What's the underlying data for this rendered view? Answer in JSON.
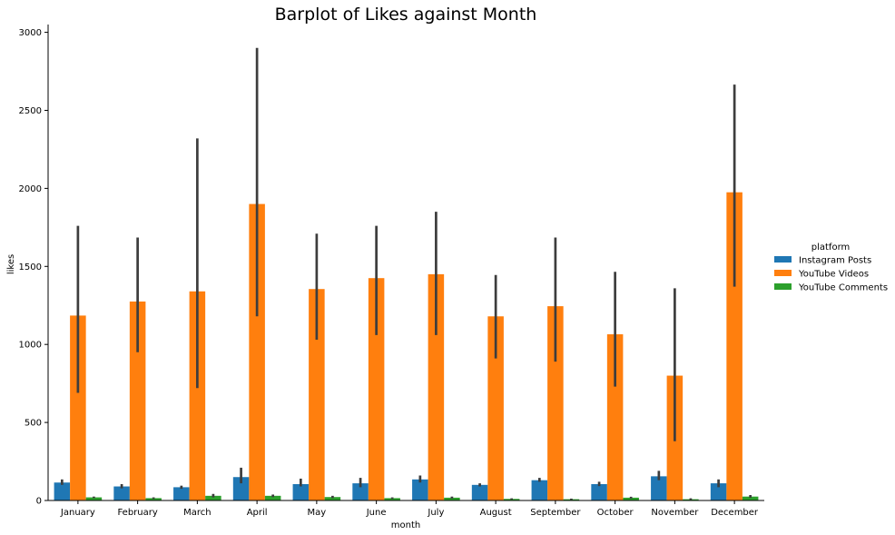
{
  "chart_data": {
    "type": "bar",
    "title": "Barplot of Likes against Month",
    "xlabel": "month",
    "ylabel": "likes",
    "ylim": [
      0,
      3050
    ],
    "yticks": [
      0,
      500,
      1000,
      1500,
      2000,
      2500,
      3000
    ],
    "grid": false,
    "legend_position": "right",
    "legend_title": "platform",
    "categories": [
      "January",
      "February",
      "March",
      "April",
      "May",
      "June",
      "July",
      "August",
      "September",
      "October",
      "November",
      "December"
    ],
    "series": [
      {
        "name": "Instagram Posts",
        "color": "#1f77b4",
        "values": [
          115,
          90,
          85,
          150,
          105,
          110,
          135,
          100,
          130,
          105,
          155,
          110
        ],
        "ci_low": [
          100,
          78,
          75,
          110,
          90,
          85,
          115,
          90,
          120,
          92,
          130,
          85
        ],
        "ci_high": [
          135,
          105,
          95,
          210,
          140,
          145,
          160,
          110,
          145,
          120,
          190,
          135
        ]
      },
      {
        "name": "YouTube Videos",
        "color": "#ff7f0e",
        "values": [
          1185,
          1275,
          1340,
          1900,
          1355,
          1425,
          1450,
          1180,
          1245,
          1065,
          800,
          1975
        ],
        "ci_low": [
          690,
          950,
          720,
          1180,
          1030,
          1060,
          1060,
          910,
          890,
          730,
          380,
          1370
        ],
        "ci_high": [
          1760,
          1685,
          2320,
          2900,
          1710,
          1760,
          1850,
          1445,
          1685,
          1465,
          1360,
          2665
        ]
      },
      {
        "name": "YouTube Comments",
        "color": "#2ca02c",
        "values": [
          20,
          15,
          30,
          30,
          22,
          15,
          18,
          10,
          8,
          18,
          8,
          25
        ],
        "ci_low": [
          15,
          10,
          20,
          22,
          15,
          10,
          12,
          6,
          4,
          12,
          4,
          18
        ],
        "ci_high": [
          25,
          20,
          42,
          38,
          30,
          20,
          25,
          14,
          12,
          24,
          14,
          35
        ]
      }
    ]
  }
}
